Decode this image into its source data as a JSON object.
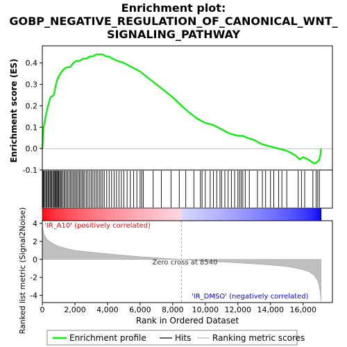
{
  "title_lines": [
    "Enrichment plot:",
    "GOBP_NEGATIVE_REGULATION_OF_CANONICAL_WNT_",
    "SIGNALING_PATHWAY"
  ],
  "es_ylabel": "Enrichment score (ES)",
  "metric_ylabel_line1": "Ranked list metric (Signal2Noise)",
  "xlabel": "Rank in Ordered Dataset",
  "pos_label": "'IR_A10' (positively correlated)",
  "neg_label": "'IR_DMSO' (negatively correlated)",
  "zero_cross_label": "Zero cross at 8540",
  "legend": {
    "enrichment": "Enrichment profile",
    "hits": "Hits",
    "ranking": "Ranking metric scores"
  },
  "colors": {
    "es_line": "#00ee00",
    "pos_color": "#ff0000",
    "neg_color": "#0000ff",
    "metric_fill": "#bfbfbf"
  },
  "chart_data": {
    "type": "line",
    "x_range": [
      0,
      17800
    ],
    "zero_cross": 8540,
    "n_ranked": 17100,
    "es_yticks": [
      -0.1,
      0.0,
      0.1,
      0.2,
      0.3,
      0.4
    ],
    "es_ytick_labels": [
      "-0.1",
      "0.0",
      "0.1",
      "0.2",
      "0.3",
      "0.4"
    ],
    "es_ylim": [
      -0.1,
      0.48
    ],
    "metric_yticks": [
      -4,
      -2,
      0,
      2,
      4
    ],
    "metric_ytick_labels": [
      "-4",
      "-2",
      "0",
      "2",
      "4"
    ],
    "metric_ylim": [
      -4.8,
      4.3
    ],
    "xticks": [
      0,
      2000,
      4000,
      6000,
      8000,
      10000,
      12000,
      14000,
      16000
    ],
    "xtick_labels": [
      "0",
      "2,000",
      "4,000",
      "6,000",
      "8,000",
      "10,000",
      "12,000",
      "14,000",
      "16,000"
    ],
    "es_profile": {
      "x": [
        0,
        80,
        200,
        350,
        500,
        700,
        900,
        1100,
        1300,
        1500,
        1700,
        1900,
        2100,
        2300,
        2500,
        2700,
        2900,
        3100,
        3300,
        3500,
        3700,
        3900,
        4100,
        4300,
        4600,
        5000,
        5500,
        6000,
        6500,
        7000,
        7500,
        8000,
        8540,
        9000,
        9500,
        10000,
        10500,
        11000,
        11500,
        12000,
        12300,
        12600,
        13000,
        13500,
        14000,
        14500,
        15000,
        15500,
        15800,
        16000,
        16300,
        16500,
        16700,
        16900,
        17000,
        17060,
        17100
      ],
      "y": [
        0.0,
        0.1,
        0.15,
        0.2,
        0.24,
        0.25,
        0.32,
        0.35,
        0.37,
        0.38,
        0.38,
        0.4,
        0.41,
        0.41,
        0.42,
        0.42,
        0.43,
        0.43,
        0.44,
        0.44,
        0.44,
        0.43,
        0.43,
        0.42,
        0.41,
        0.4,
        0.38,
        0.36,
        0.33,
        0.3,
        0.27,
        0.24,
        0.2,
        0.17,
        0.14,
        0.12,
        0.11,
        0.09,
        0.07,
        0.06,
        0.06,
        0.05,
        0.04,
        0.02,
        0.01,
        0.0,
        -0.01,
        -0.03,
        -0.05,
        -0.04,
        -0.05,
        -0.06,
        -0.07,
        -0.06,
        -0.05,
        -0.03,
        0.0
      ]
    },
    "hits": [
      20,
      60,
      110,
      170,
      230,
      290,
      350,
      400,
      470,
      520,
      580,
      640,
      700,
      760,
      800,
      850,
      900,
      950,
      1000,
      1060,
      1120,
      1180,
      1250,
      1330,
      1400,
      1480,
      1560,
      1640,
      1720,
      1800,
      1880,
      1960,
      2040,
      2120,
      2200,
      2280,
      2360,
      2440,
      2520,
      2600,
      2700,
      2800,
      2900,
      3000,
      3100,
      3200,
      3300,
      3400,
      3500,
      3600,
      3700,
      3800,
      3950,
      4100,
      4250,
      4400,
      4550,
      4700,
      4850,
      5000,
      5200,
      5400,
      5600,
      5800,
      6000,
      6100,
      6200,
      6800,
      7300,
      7900,
      8400,
      8800,
      9300,
      9700,
      9800,
      10000,
      10300,
      10500,
      10700,
      10900,
      11000,
      11200,
      11400,
      11600,
      11800,
      12000,
      12100,
      12200,
      12300,
      12450,
      12700,
      13200,
      13500,
      13700,
      14000,
      14200,
      14500,
      14700,
      15000,
      15700,
      15900,
      16100,
      16600,
      16800,
      16900,
      17000
    ],
    "metric_profile": {
      "x": [
        0,
        100,
        300,
        600,
        1000,
        1500,
        2000,
        3000,
        4000,
        5000,
        6000,
        7000,
        8000,
        8540,
        9000,
        10000,
        11000,
        12000,
        13000,
        14000,
        15000,
        15500,
        16000,
        16400,
        16700,
        16900,
        17000,
        17060,
        17100
      ],
      "y": [
        3.8,
        2.8,
        2.2,
        1.8,
        1.45,
        1.2,
        1.0,
        0.8,
        0.62,
        0.45,
        0.3,
        0.18,
        0.06,
        0.0,
        -0.06,
        -0.18,
        -0.28,
        -0.38,
        -0.5,
        -0.62,
        -0.8,
        -0.95,
        -1.15,
        -1.4,
        -1.8,
        -2.4,
        -3.0,
        -3.8,
        -4.7
      ]
    }
  }
}
